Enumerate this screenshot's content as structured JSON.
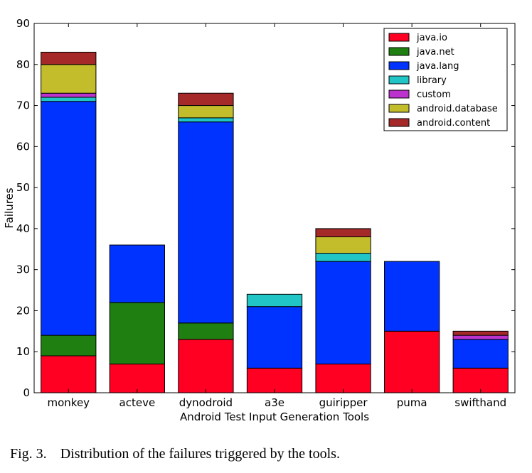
{
  "caption": {
    "label": "Fig. 3.",
    "text": "Distribution of the failures triggered by the tools."
  },
  "chart_data": {
    "type": "bar",
    "stacked": true,
    "xlabel": "Android Test Input Generation Tools",
    "ylabel": "Failures",
    "ylim": [
      0,
      90
    ],
    "yticks": [
      0,
      10,
      20,
      30,
      40,
      50,
      60,
      70,
      80,
      90
    ],
    "grid": false,
    "legend_position": "top-right",
    "categories": [
      "monkey",
      "acteve",
      "dynodroid",
      "a3e",
      "guiripper",
      "puma",
      "swifthand"
    ],
    "series": [
      {
        "name": "java.io",
        "color": "#ff0022",
        "values": [
          9,
          7,
          13,
          6,
          7,
          15,
          6
        ]
      },
      {
        "name": "java.net",
        "color": "#1f7f11",
        "values": [
          5,
          15,
          4,
          0,
          0,
          0,
          0
        ]
      },
      {
        "name": "java.lang",
        "color": "#0033ff",
        "values": [
          57,
          14,
          49,
          15,
          25,
          17,
          7
        ]
      },
      {
        "name": "library",
        "color": "#22c5c5",
        "values": [
          1,
          0,
          1,
          3,
          2,
          0,
          0
        ]
      },
      {
        "name": "custom",
        "color": "#bb33cc",
        "values": [
          1,
          0,
          0,
          0,
          0,
          0,
          1
        ]
      },
      {
        "name": "android.database",
        "color": "#c4bd2b",
        "values": [
          7,
          0,
          3,
          0,
          4,
          0,
          0
        ]
      },
      {
        "name": "android.content",
        "color": "#a52929",
        "values": [
          3,
          0,
          3,
          0,
          2,
          0,
          1
        ]
      }
    ]
  }
}
